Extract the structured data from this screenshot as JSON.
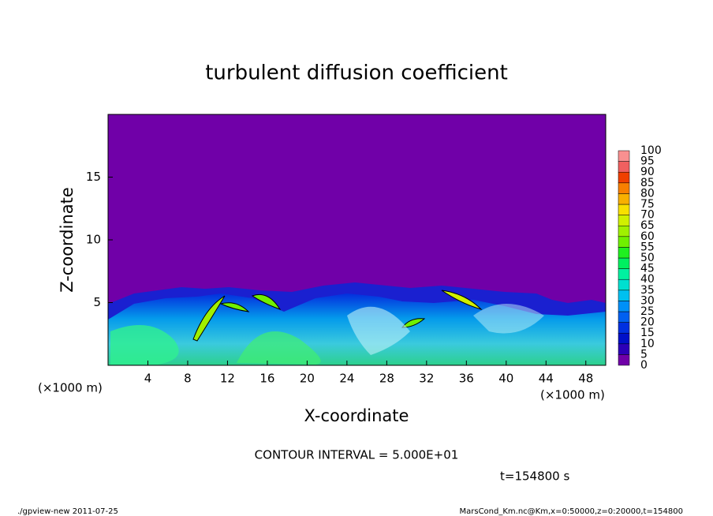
{
  "chart_data": {
    "type": "contour",
    "title": "turbulent diffusion coefficient",
    "x_label": "X-coordinate",
    "y_label": "Z-coordinate",
    "x_unit_left": "(×1000 m)",
    "x_unit_right": "(×1000 m)",
    "xlim": [
      0,
      50
    ],
    "xticks": [
      4,
      8,
      12,
      16,
      20,
      24,
      28,
      32,
      36,
      40,
      44,
      48
    ],
    "ylim": [
      0,
      20
    ],
    "yticks": [
      5,
      10,
      15
    ],
    "background_color": "#7000a8",
    "colorbar": {
      "levels": [
        0,
        5,
        10,
        15,
        20,
        25,
        30,
        35,
        40,
        45,
        50,
        55,
        60,
        65,
        70,
        75,
        80,
        85,
        90,
        95,
        100
      ],
      "colors": [
        "#7000a8",
        "#2c00b8",
        "#0010c8",
        "#0030e0",
        "#0060f0",
        "#0090f8",
        "#00c0f0",
        "#00e0d0",
        "#00f0a0",
        "#00f060",
        "#20f020",
        "#70f000",
        "#a0f000",
        "#d0f000",
        "#f8e000",
        "#f8b000",
        "#f88000",
        "#f04000",
        "#f06060",
        "#f89090"
      ]
    },
    "contour_interval_text": "CONTOUR INTERVAL = 5.000E+01",
    "time_text": "t=154800 s",
    "footer_left": "./gpview-new   2011-07-25",
    "footer_right": "MarsCond_Km.nc@Km,x=0:50000,z=0:20000,t=154800"
  }
}
